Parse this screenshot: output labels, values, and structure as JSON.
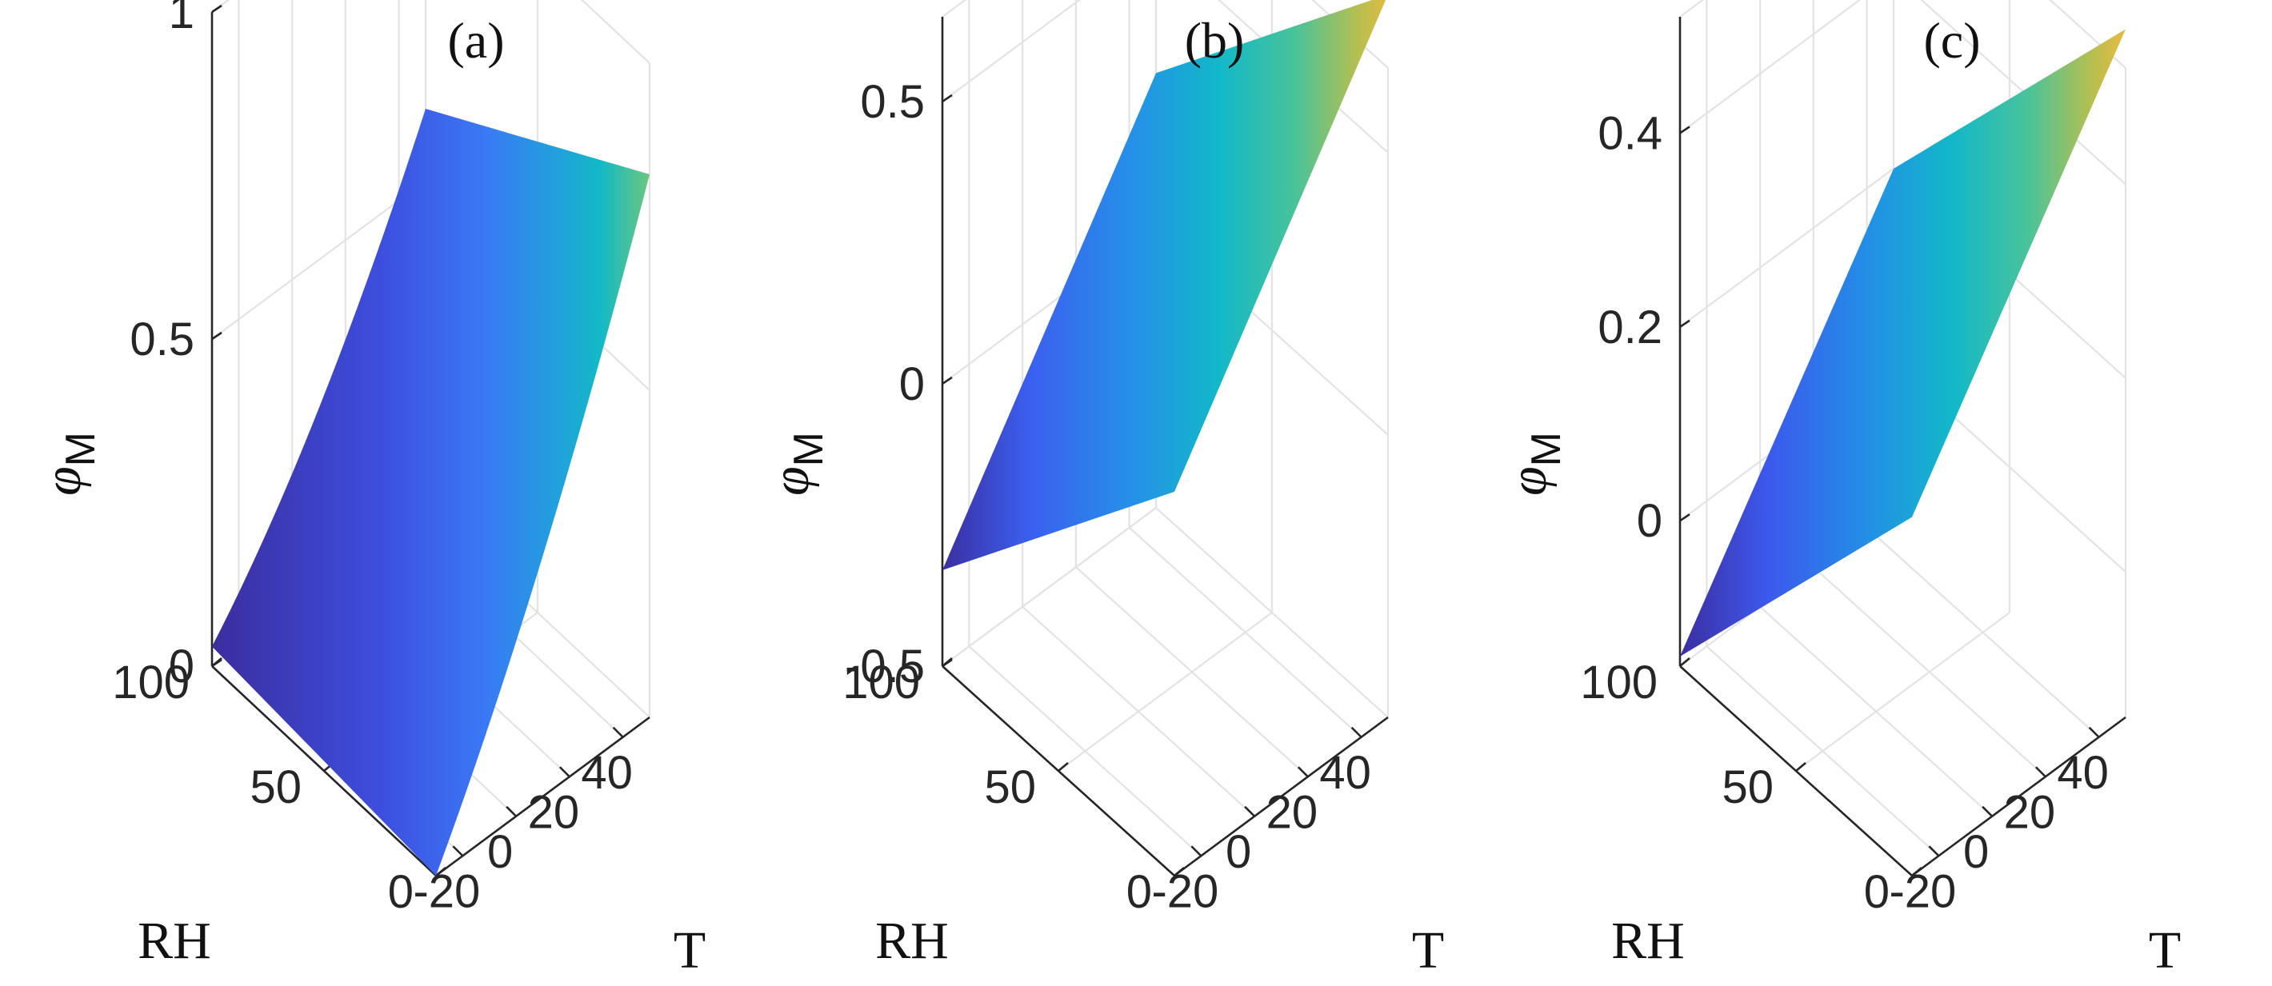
{
  "chart_data": [
    {
      "type": "surface",
      "title": "(a)",
      "xlabel": "T",
      "ylabel": "RH",
      "zlabel_symbol": "φ",
      "zlabel_sub": "M",
      "xlim": [
        -30,
        50
      ],
      "ylim": [
        0,
        100
      ],
      "zlim": [
        0,
        1
      ],
      "xticks": [
        -20,
        0,
        20,
        40
      ],
      "xtick_labels": [
        "-20",
        "0",
        "20",
        "40"
      ],
      "yticks": [
        0,
        50,
        100
      ],
      "ytick_labels": [
        "0",
        "50",
        "100"
      ],
      "zticks": [
        0,
        0.5,
        1
      ],
      "ztick_labels": [
        "0",
        "0.5",
        "1"
      ],
      "corners": [
        {
          "T": -30,
          "RH": 100,
          "phi": 0.03
        },
        {
          "T": 50,
          "RH": 100,
          "phi": 0.61
        },
        {
          "T": 50,
          "RH": 0,
          "phi": 0.83
        },
        {
          "T": -30,
          "RH": 0,
          "phi": 0.0
        }
      ],
      "curvature": 0.55,
      "colormap": "parula",
      "grid": true
    },
    {
      "type": "surface",
      "title": "(b)",
      "xlabel": "T",
      "ylabel": "RH",
      "zlabel_symbol": "φ",
      "zlabel_sub": "M",
      "xlim": [
        -30,
        50
      ],
      "ylim": [
        0,
        100
      ],
      "zlim": [
        -0.5,
        0.65
      ],
      "xticks": [
        -20,
        0,
        20,
        40
      ],
      "xtick_labels": [
        "-20",
        "0",
        "20",
        "40"
      ],
      "yticks": [
        0,
        50,
        100
      ],
      "ytick_labels": [
        "0",
        "50",
        "100"
      ],
      "zticks": [
        -0.5,
        0,
        0.5
      ],
      "ztick_labels": [
        "-0.5",
        "0",
        "0.5"
      ],
      "corners": [
        {
          "T": -30,
          "RH": 100,
          "phi": -0.33
        },
        {
          "T": 50,
          "RH": 100,
          "phi": 0.27
        },
        {
          "T": 50,
          "RH": 0,
          "phi": 0.78
        },
        {
          "T": -30,
          "RH": 0,
          "phi": 0.18
        }
      ],
      "curvature": 0.0,
      "colormap": "parula",
      "grid": true
    },
    {
      "type": "surface",
      "title": "(c)",
      "xlabel": "T",
      "ylabel": "RH",
      "zlabel_symbol": "φ",
      "zlabel_sub": "M",
      "xlim": [
        -30,
        50
      ],
      "ylim": [
        0,
        100
      ],
      "zlim": [
        -0.15,
        0.52
      ],
      "xticks": [
        -20,
        0,
        20,
        40
      ],
      "xtick_labels": [
        "-20",
        "0",
        "20",
        "40"
      ],
      "yticks": [
        0,
        50,
        100
      ],
      "ytick_labels": [
        "0",
        "50",
        "100"
      ],
      "zticks": [
        0,
        0.2,
        0.4
      ],
      "ztick_labels": [
        "0",
        "0.2",
        "0.4"
      ],
      "corners": [
        {
          "T": -30,
          "RH": 100,
          "phi": -0.14
        },
        {
          "T": 50,
          "RH": 100,
          "phi": 0.2
        },
        {
          "T": 50,
          "RH": 0,
          "phi": 0.56
        },
        {
          "T": -30,
          "RH": 0,
          "phi": 0.22
        }
      ],
      "curvature": 0.0,
      "colormap": "parula",
      "grid": true
    }
  ]
}
